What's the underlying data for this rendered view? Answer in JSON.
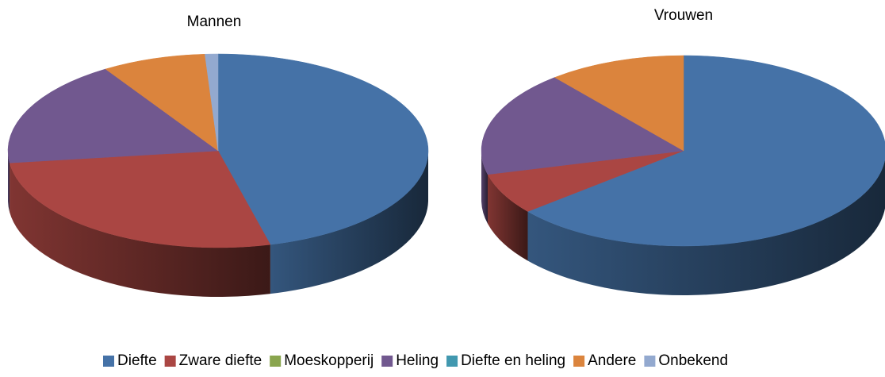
{
  "chart_data": [
    {
      "type": "pie",
      "title": "Mannen",
      "categories": [
        "Diefte",
        "Zware diefte",
        "Moeskopperij",
        "Heling",
        "Diefte en heling",
        "Andere",
        "Onbekend"
      ],
      "values": [
        46,
        27,
        0,
        18,
        0,
        8,
        1
      ],
      "colors": [
        "#4572a7",
        "#aa4643",
        "#89a54e",
        "#71588f",
        "#4198af",
        "#db843d",
        "#93a9cf"
      ]
    },
    {
      "type": "pie",
      "title": "Vrouwen",
      "categories": [
        "Diefte",
        "Zware diefte",
        "Moeskopperij",
        "Heling",
        "Diefte en heling",
        "Andere",
        "Onbekend"
      ],
      "values": [
        64,
        7,
        0,
        18,
        0,
        11,
        0
      ],
      "colors": [
        "#4572a7",
        "#aa4643",
        "#89a54e",
        "#71588f",
        "#4198af",
        "#db843d",
        "#93a9cf"
      ]
    }
  ]
}
